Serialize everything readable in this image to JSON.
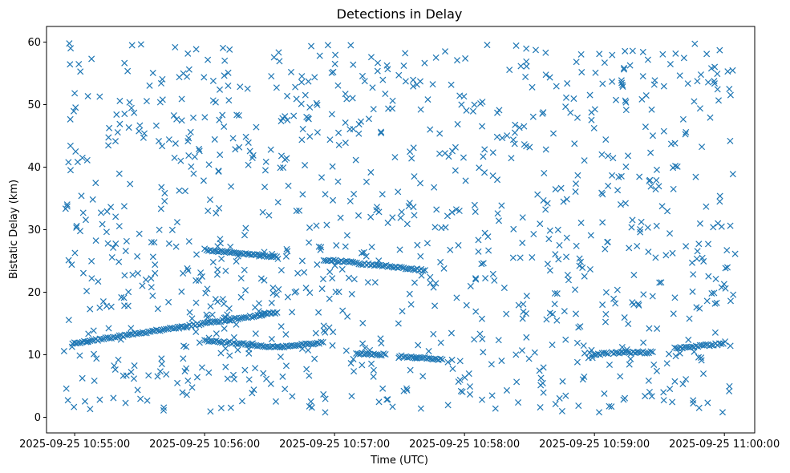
{
  "chart_data": {
    "type": "scatter",
    "title": "Detections in Delay",
    "xlabel": "Time (UTC)",
    "ylabel": "Bistatic Delay (km)",
    "x_start": "2025-09-25 10:54:55",
    "x_end": "2025-09-25 11:00:05",
    "xlim": [
      "2025-09-25 10:54:47",
      "2025-09-25 11:00:14"
    ],
    "ylim": [
      -2.5,
      62.5
    ],
    "x_ticks": [
      "2025-09-25 10:55:00",
      "2025-09-25 10:56:00",
      "2025-09-25 10:57:00",
      "2025-09-25 10:58:00",
      "2025-09-25 10:59:00",
      "2025-09-25 11:00:00"
    ],
    "y_ticks": [
      0,
      10,
      20,
      30,
      40,
      50,
      60
    ],
    "marker": "x",
    "color": "#1f77b4",
    "grid": false,
    "tracks": [
      {
        "t_start": "2025-09-25 10:54:59",
        "t_end": "2025-09-25 10:56:34",
        "y_start": 11.8,
        "y_end": 16.8
      },
      {
        "t_start": "2025-09-25 10:56:00",
        "t_end": "2025-09-25 10:56:34",
        "y_start": 26.8,
        "y_end": 25.6
      },
      {
        "t_start": "2025-09-25 10:56:00",
        "t_end": "2025-09-25 10:56:34",
        "y_start": 12.3,
        "y_end": 11.2
      },
      {
        "t_start": "2025-09-25 10:56:34",
        "t_end": "2025-09-25 10:56:55",
        "y_start": 11.2,
        "y_end": 12.0
      },
      {
        "t_start": "2025-09-25 10:56:55",
        "t_end": "2025-09-25 10:57:42",
        "y_start": 25.2,
        "y_end": 23.5
      },
      {
        "t_start": "2025-09-25 10:57:10",
        "t_end": "2025-09-25 10:57:24",
        "y_start": 10.2,
        "y_end": 10.0
      },
      {
        "t_start": "2025-09-25 10:57:30",
        "t_end": "2025-09-25 10:57:50",
        "y_start": 9.8,
        "y_end": 9.2
      },
      {
        "t_start": "2025-09-25 10:58:59",
        "t_end": "2025-09-25 10:59:07",
        "y_start": 10.0,
        "y_end": 10.3
      },
      {
        "t_start": "2025-09-25 10:59:08",
        "t_end": "2025-09-25 10:59:27",
        "y_start": 10.3,
        "y_end": 10.4
      },
      {
        "t_start": "2025-09-25 10:59:37",
        "t_end": "2025-09-25 11:00:00",
        "y_start": 11.0,
        "y_end": 11.8
      }
    ],
    "clutter": {
      "count": 1050,
      "y_min": 0.5,
      "y_max": 60,
      "seed": 20250925
    }
  }
}
